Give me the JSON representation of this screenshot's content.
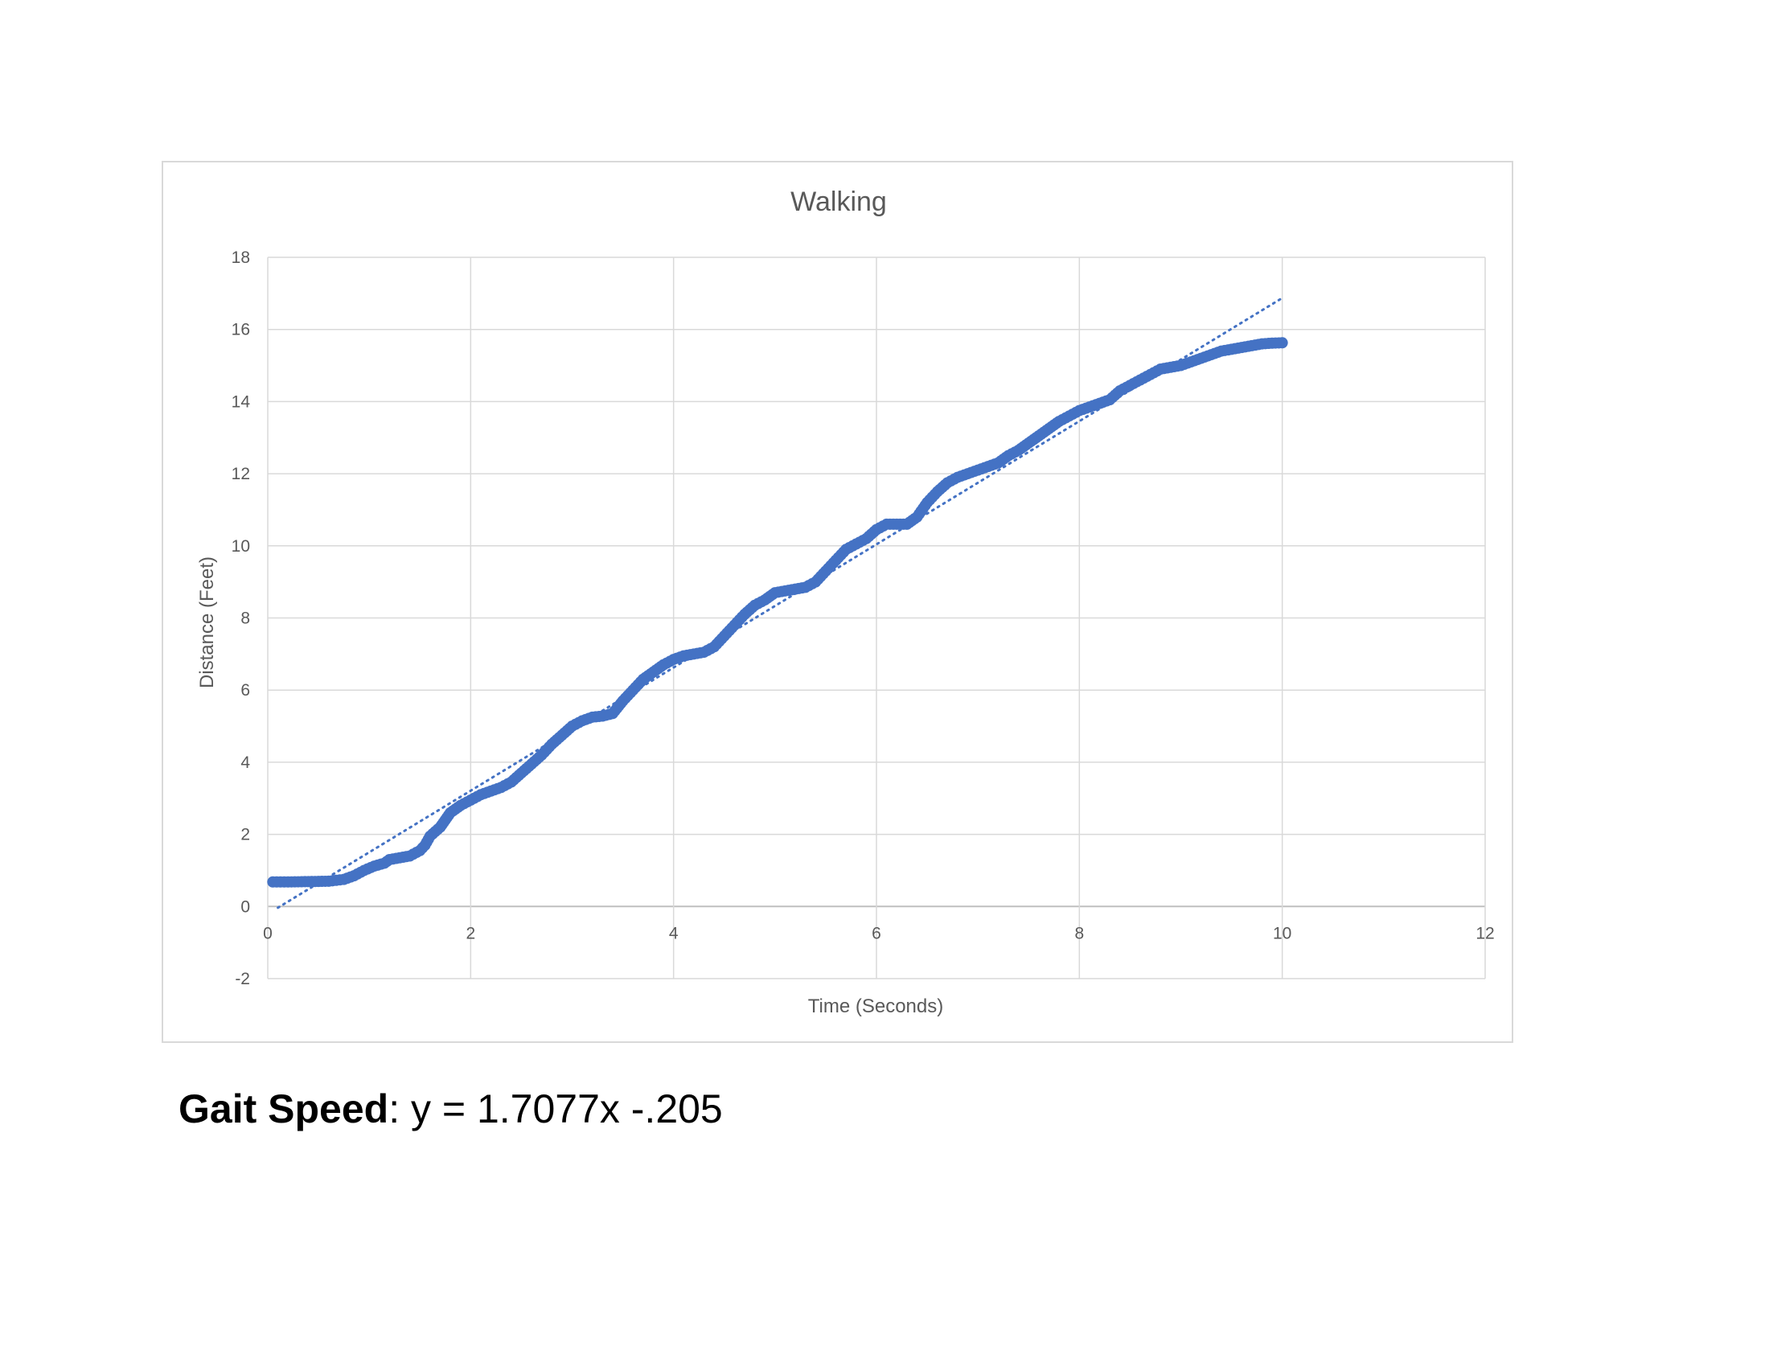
{
  "chart_data": {
    "type": "scatter",
    "title": "Walking",
    "xlabel": "Time (Seconds)",
    "ylabel": "Distance (Feet)",
    "xlim": [
      0,
      12
    ],
    "ylim": [
      -2,
      18
    ],
    "x_ticks": [
      0,
      2,
      4,
      6,
      8,
      10,
      12
    ],
    "y_ticks": [
      -2,
      0,
      2,
      4,
      6,
      8,
      10,
      12,
      14,
      16,
      18
    ],
    "grid": true,
    "legend": "none",
    "series": [
      {
        "color": "#4472c4",
        "marker": "circle",
        "points": [
          [
            0.05,
            0.68
          ],
          [
            0.2,
            0.68
          ],
          [
            0.4,
            0.69
          ],
          [
            0.6,
            0.7
          ],
          [
            0.75,
            0.75
          ],
          [
            0.85,
            0.85
          ],
          [
            0.95,
            1.0
          ],
          [
            1.05,
            1.12
          ],
          [
            1.15,
            1.2
          ],
          [
            1.2,
            1.3
          ],
          [
            1.3,
            1.35
          ],
          [
            1.4,
            1.4
          ],
          [
            1.5,
            1.55
          ],
          [
            1.55,
            1.7
          ],
          [
            1.6,
            1.95
          ],
          [
            1.7,
            2.2
          ],
          [
            1.75,
            2.4
          ],
          [
            1.8,
            2.6
          ],
          [
            1.9,
            2.8
          ],
          [
            2.0,
            2.95
          ],
          [
            2.1,
            3.1
          ],
          [
            2.2,
            3.2
          ],
          [
            2.3,
            3.3
          ],
          [
            2.4,
            3.45
          ],
          [
            2.5,
            3.7
          ],
          [
            2.6,
            3.95
          ],
          [
            2.7,
            4.2
          ],
          [
            2.8,
            4.5
          ],
          [
            2.9,
            4.75
          ],
          [
            3.0,
            5.0
          ],
          [
            3.1,
            5.15
          ],
          [
            3.2,
            5.25
          ],
          [
            3.3,
            5.28
          ],
          [
            3.4,
            5.35
          ],
          [
            3.5,
            5.7
          ],
          [
            3.6,
            6.0
          ],
          [
            3.7,
            6.3
          ],
          [
            3.8,
            6.5
          ],
          [
            3.9,
            6.7
          ],
          [
            4.0,
            6.85
          ],
          [
            4.1,
            6.95
          ],
          [
            4.2,
            7.0
          ],
          [
            4.3,
            7.05
          ],
          [
            4.4,
            7.2
          ],
          [
            4.5,
            7.5
          ],
          [
            4.6,
            7.8
          ],
          [
            4.7,
            8.1
          ],
          [
            4.8,
            8.35
          ],
          [
            4.9,
            8.5
          ],
          [
            5.0,
            8.7
          ],
          [
            5.1,
            8.75
          ],
          [
            5.2,
            8.8
          ],
          [
            5.3,
            8.85
          ],
          [
            5.4,
            9.0
          ],
          [
            5.5,
            9.3
          ],
          [
            5.6,
            9.6
          ],
          [
            5.7,
            9.9
          ],
          [
            5.8,
            10.05
          ],
          [
            5.9,
            10.2
          ],
          [
            6.0,
            10.45
          ],
          [
            6.1,
            10.6
          ],
          [
            6.2,
            10.6
          ],
          [
            6.3,
            10.6
          ],
          [
            6.4,
            10.8
          ],
          [
            6.5,
            11.2
          ],
          [
            6.6,
            11.5
          ],
          [
            6.7,
            11.75
          ],
          [
            6.8,
            11.9
          ],
          [
            6.9,
            12.0
          ],
          [
            7.0,
            12.1
          ],
          [
            7.1,
            12.2
          ],
          [
            7.2,
            12.3
          ],
          [
            7.3,
            12.5
          ],
          [
            7.4,
            12.65
          ],
          [
            7.5,
            12.85
          ],
          [
            7.6,
            13.05
          ],
          [
            7.7,
            13.25
          ],
          [
            7.8,
            13.45
          ],
          [
            7.9,
            13.6
          ],
          [
            8.0,
            13.75
          ],
          [
            8.1,
            13.85
          ],
          [
            8.2,
            13.95
          ],
          [
            8.3,
            14.05
          ],
          [
            8.4,
            14.3
          ],
          [
            8.5,
            14.45
          ],
          [
            8.6,
            14.6
          ],
          [
            8.7,
            14.75
          ],
          [
            8.8,
            14.9
          ],
          [
            8.9,
            14.95
          ],
          [
            9.0,
            15.0
          ],
          [
            9.1,
            15.1
          ],
          [
            9.2,
            15.2
          ],
          [
            9.3,
            15.3
          ],
          [
            9.4,
            15.4
          ],
          [
            9.5,
            15.45
          ],
          [
            9.6,
            15.5
          ],
          [
            9.7,
            15.55
          ],
          [
            9.8,
            15.6
          ],
          [
            9.9,
            15.62
          ],
          [
            10.0,
            15.63
          ]
        ]
      }
    ],
    "trendline": {
      "style": "dotted",
      "color": "#4472c4",
      "slope": 1.7077,
      "intercept": -0.205,
      "x_range": [
        0.1,
        10.0
      ]
    }
  },
  "gait": {
    "label": "Gait Speed",
    "equation": ": y = 1.7077x -.205"
  }
}
